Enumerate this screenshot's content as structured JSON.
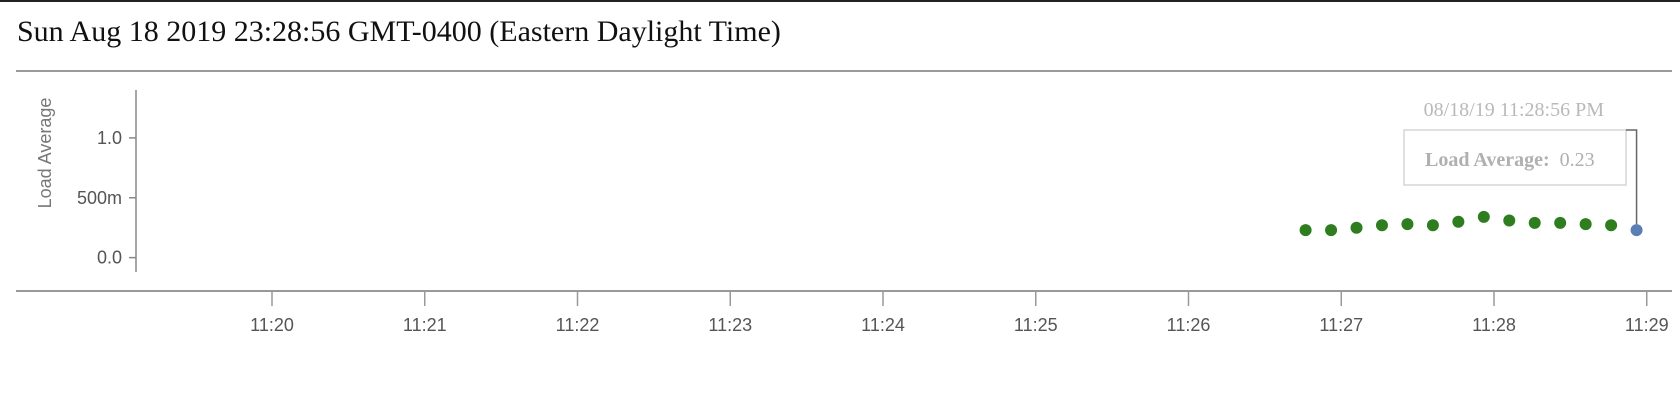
{
  "header": {
    "title": "Sun Aug 18 2019 23:28:56 GMT-0400 (Eastern Daylight Time)"
  },
  "chart_data": {
    "type": "scatter",
    "ylabel": "Load Average",
    "xlabel": "",
    "ylim": [
      -0.12,
      1.4
    ],
    "y_ticks": [
      {
        "value": 0.0,
        "label": "0.0"
      },
      {
        "value": 0.5,
        "label": "500m"
      },
      {
        "value": 1.0,
        "label": "1.0"
      }
    ],
    "x_ticks": [
      "11:20",
      "11:21",
      "11:22",
      "11:23",
      "11:24",
      "11:25",
      "11:26",
      "11:27",
      "11:28",
      "11:29"
    ],
    "series": [
      {
        "color": "#2e7d1e",
        "points": [
          {
            "x": "11:26:46",
            "y": 0.23
          },
          {
            "x": "11:26:56",
            "y": 0.23
          },
          {
            "x": "11:27:06",
            "y": 0.25
          },
          {
            "x": "11:27:16",
            "y": 0.27
          },
          {
            "x": "11:27:26",
            "y": 0.28
          },
          {
            "x": "11:27:36",
            "y": 0.27
          },
          {
            "x": "11:27:46",
            "y": 0.3
          },
          {
            "x": "11:27:56",
            "y": 0.34
          },
          {
            "x": "11:28:06",
            "y": 0.31
          },
          {
            "x": "11:28:16",
            "y": 0.29
          },
          {
            "x": "11:28:26",
            "y": 0.29
          },
          {
            "x": "11:28:36",
            "y": 0.28
          },
          {
            "x": "11:28:46",
            "y": 0.27
          }
        ]
      }
    ],
    "highlight": {
      "x": "11:28:56",
      "y": 0.23,
      "color": "#5b7fb5"
    },
    "tooltip": {
      "time": "08/18/19 11:28:56 PM",
      "label": "Load Average:",
      "value": "0.23"
    },
    "grid": false
  }
}
